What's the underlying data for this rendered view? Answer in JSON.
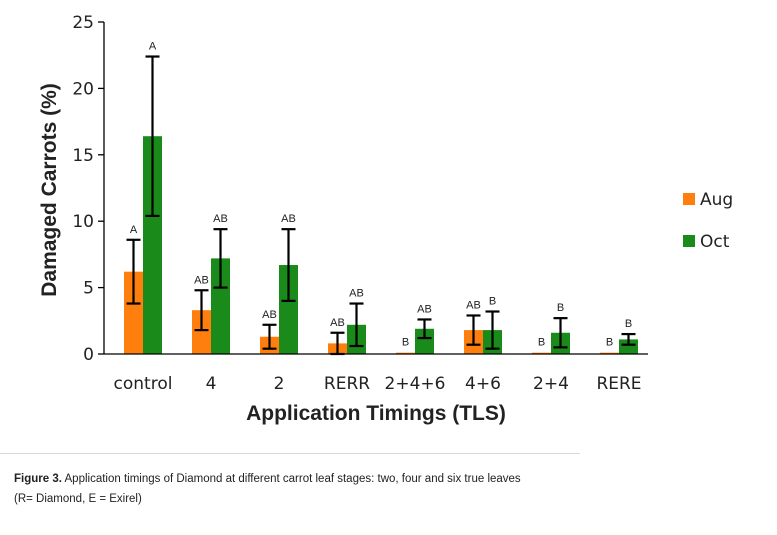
{
  "chart_data": {
    "type": "bar",
    "title": "",
    "xlabel": "Application Timings (TLS)",
    "ylabel": "Damaged Carrots (%)",
    "ylim": [
      0,
      25
    ],
    "yticks": [
      "0",
      "5",
      "10",
      "15",
      "20",
      "25"
    ],
    "grid": false,
    "legend_position": "right",
    "categories": [
      "control",
      "4",
      "2",
      "RERR",
      "2+4+6",
      "4+6",
      "2+4",
      "RERE"
    ],
    "series": [
      {
        "name": "Aug",
        "color": "#ff7f0e",
        "values": [
          6.2,
          3.3,
          1.3,
          0.8,
          0.1,
          1.8,
          0.1,
          0.1
        ],
        "errors": [
          2.4,
          1.5,
          0.9,
          0.8,
          0.0,
          1.1,
          0.0,
          0.0
        ],
        "labels": [
          "A",
          "AB",
          "AB",
          "AB",
          "B",
          "AB",
          "B",
          "B"
        ]
      },
      {
        "name": "Oct",
        "color": "#1a8a1a",
        "values": [
          16.4,
          7.2,
          6.7,
          2.2,
          1.9,
          1.8,
          1.6,
          1.1
        ],
        "errors": [
          6.0,
          2.2,
          2.7,
          1.6,
          0.7,
          1.4,
          1.1,
          0.4
        ],
        "labels": [
          "A",
          "AB",
          "AB",
          "AB",
          "AB",
          "B",
          "B",
          "B"
        ]
      }
    ]
  },
  "caption": {
    "label": "Figure 3.",
    "text": " Application timings of Diamond at different carrot leaf stages: two, four and six true leaves",
    "line2": "(R= Diamond, E = Exirel)"
  }
}
